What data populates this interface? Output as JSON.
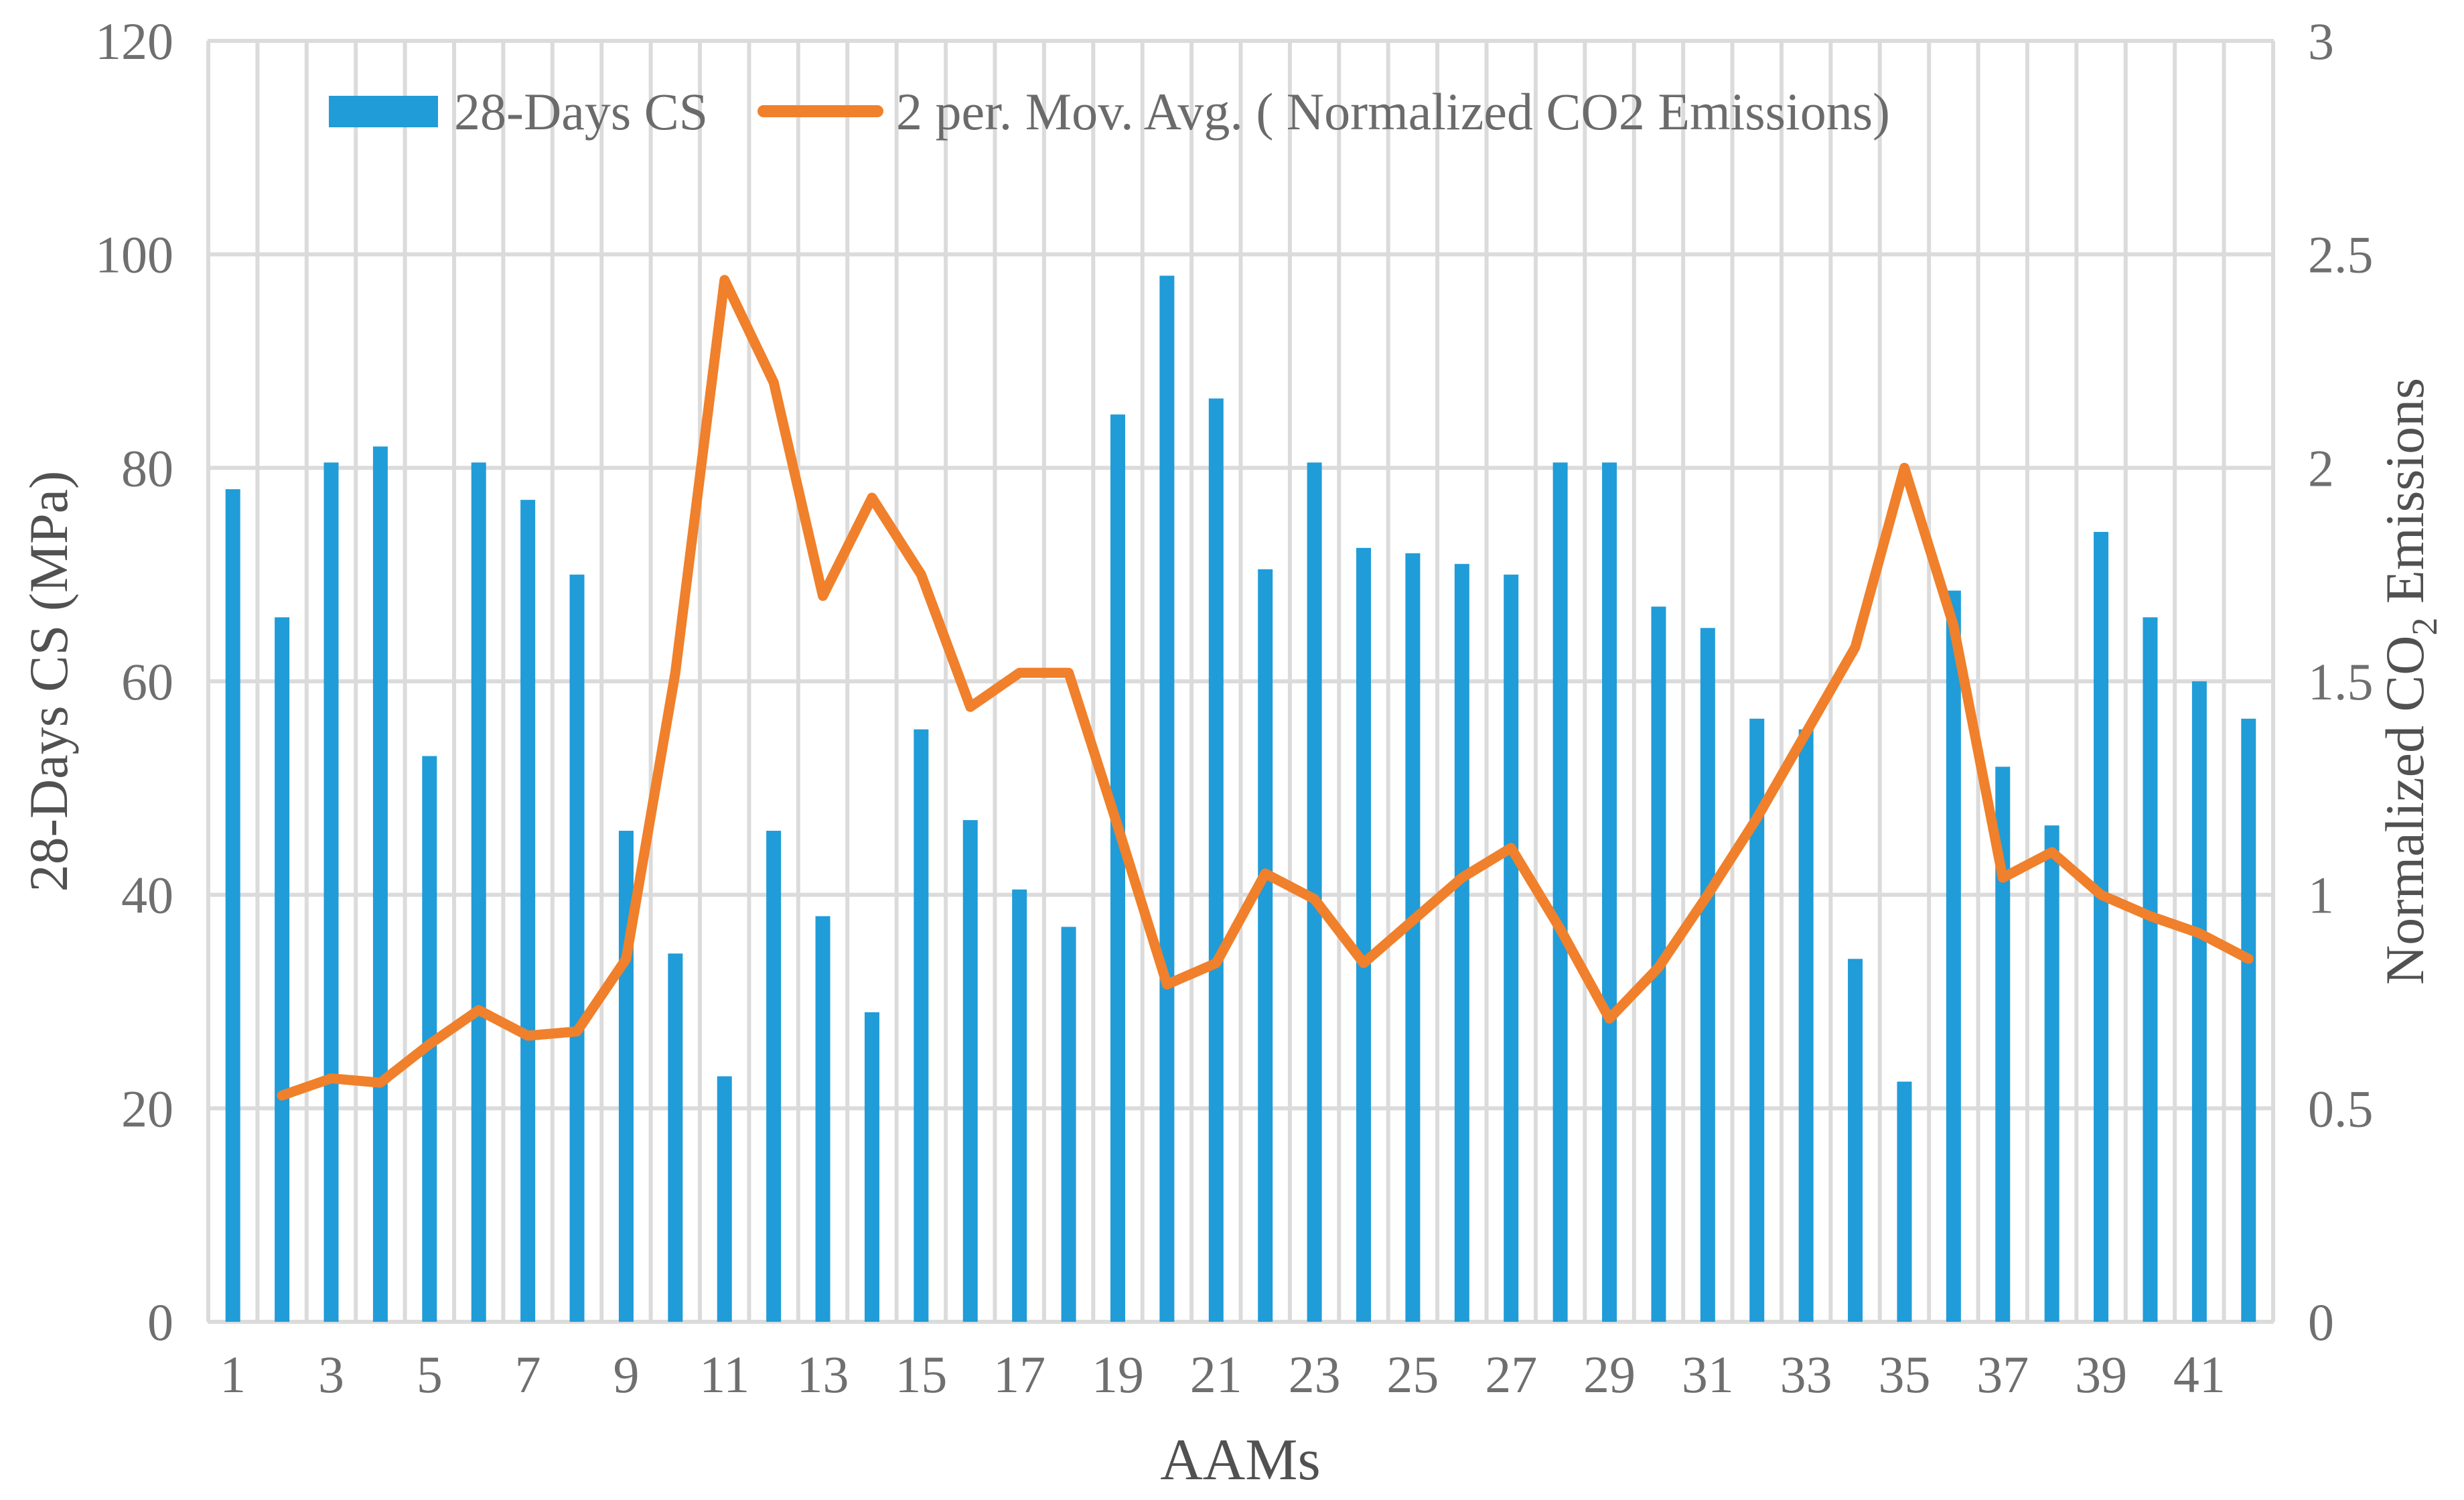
{
  "chart_data": {
    "type": "combo-bar-line",
    "background": "#FFFFFF",
    "grid": {
      "color": "#DBDBDB",
      "vertical_on": true,
      "horizontal_on": true
    },
    "categories": [
      1,
      2,
      3,
      4,
      5,
      6,
      7,
      8,
      9,
      10,
      11,
      12,
      13,
      14,
      15,
      16,
      17,
      18,
      19,
      20,
      21,
      22,
      23,
      24,
      25,
      26,
      27,
      28,
      29,
      30,
      31,
      32,
      33,
      34,
      35,
      36,
      37,
      38,
      39,
      40,
      41,
      42
    ],
    "x_axis": {
      "title": "AAMs",
      "tick_labels": [
        "1",
        "3",
        "5",
        "7",
        "9",
        "11",
        "13",
        "15",
        "17",
        "19",
        "21",
        "23",
        "25",
        "27",
        "29",
        "31",
        "33",
        "35",
        "37",
        "39",
        "41"
      ]
    },
    "y_axis_left": {
      "title": "28-Days CS (MPa)",
      "min": 0,
      "max": 120,
      "step": 20,
      "tick_labels": [
        "0",
        "20",
        "40",
        "60",
        "80",
        "100",
        "120"
      ]
    },
    "y_axis_right": {
      "title_pre": "Normalized CO",
      "title_sub": "2",
      "title_post": " Emissions",
      "min": 0,
      "max": 3,
      "step": 0.5,
      "tick_labels": [
        "0",
        "0.5",
        "1",
        "1.5",
        "2",
        "2.5",
        "3"
      ]
    },
    "series": [
      {
        "name": "28-Days CS",
        "type": "bar",
        "axis": "left",
        "color": "#209CD8",
        "values": [
          78,
          66,
          80.5,
          82,
          53,
          80.5,
          77,
          70,
          46,
          34.5,
          23,
          46,
          38,
          29,
          55.5,
          47,
          40.5,
          37,
          85,
          98,
          86.5,
          70.5,
          80.5,
          72.5,
          72,
          71,
          70,
          80.5,
          80.5,
          67,
          65,
          56.5,
          55.5,
          34,
          22.5,
          68.5,
          52,
          46.5,
          74,
          66,
          60,
          56.5
        ]
      },
      {
        "name": "2 per. Mov. Avg. ( Normalized CO2 Emissions)",
        "type": "line",
        "axis": "right",
        "color": "#F0802B",
        "start_category": 2,
        "values": [
          0.53,
          0.57,
          0.56,
          0.65,
          0.73,
          0.67,
          0.68,
          0.85,
          1.52,
          2.44,
          2.2,
          1.7,
          1.93,
          1.75,
          1.44,
          1.52,
          1.52,
          1.16,
          0.79,
          0.84,
          1.05,
          0.99,
          0.84,
          0.94,
          1.04,
          1.11,
          0.92,
          0.71,
          0.83,
          1.0,
          1.18,
          1.38,
          1.58,
          2.0,
          1.63,
          1.04,
          1.1,
          1.0,
          0.95,
          0.91,
          0.85
        ]
      }
    ],
    "legend": {
      "position": "top"
    },
    "text_colors": {
      "ticks": "#6F6F6F",
      "titles": "#515151",
      "legend": "#6B6B6B"
    }
  }
}
